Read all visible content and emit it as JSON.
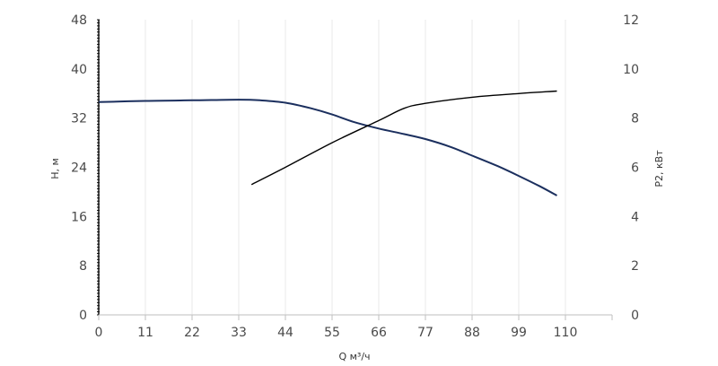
{
  "chart_data": {
    "type": "line",
    "x_label": "Q м³/ч",
    "y_label": "H, м",
    "y2_label": "P2, кВт",
    "x_ticks": [
      0,
      11,
      22,
      33,
      44,
      55,
      66,
      77,
      88,
      99,
      110
    ],
    "y_ticks": [
      0,
      8,
      16,
      24,
      32,
      40,
      48
    ],
    "y2_ticks": [
      0,
      2,
      4,
      6,
      8,
      10,
      12
    ],
    "xlim": [
      0,
      121
    ],
    "ylim": [
      0,
      48
    ],
    "y2lim": [
      0,
      12
    ],
    "grid": "vertical",
    "series": [
      {
        "axis": "left",
        "color": "#1b2f5e",
        "x": [
          0,
          11,
          22,
          33,
          38,
          44,
          50,
          55,
          60,
          66,
          72,
          77,
          83,
          88,
          94,
          99,
          104,
          108
        ],
        "y": [
          34.6,
          34.8,
          34.9,
          35.0,
          34.9,
          34.5,
          33.6,
          32.6,
          31.4,
          30.3,
          29.4,
          28.6,
          27.3,
          25.9,
          24.2,
          22.6,
          20.9,
          19.4
        ]
      },
      {
        "axis": "right",
        "color": "#000000",
        "x": [
          36,
          44,
          55,
          66,
          72,
          77,
          88,
          99,
          108
        ],
        "y": [
          5.3,
          6.0,
          7.0,
          7.9,
          8.4,
          8.6,
          8.85,
          9.0,
          9.1
        ]
      }
    ]
  }
}
